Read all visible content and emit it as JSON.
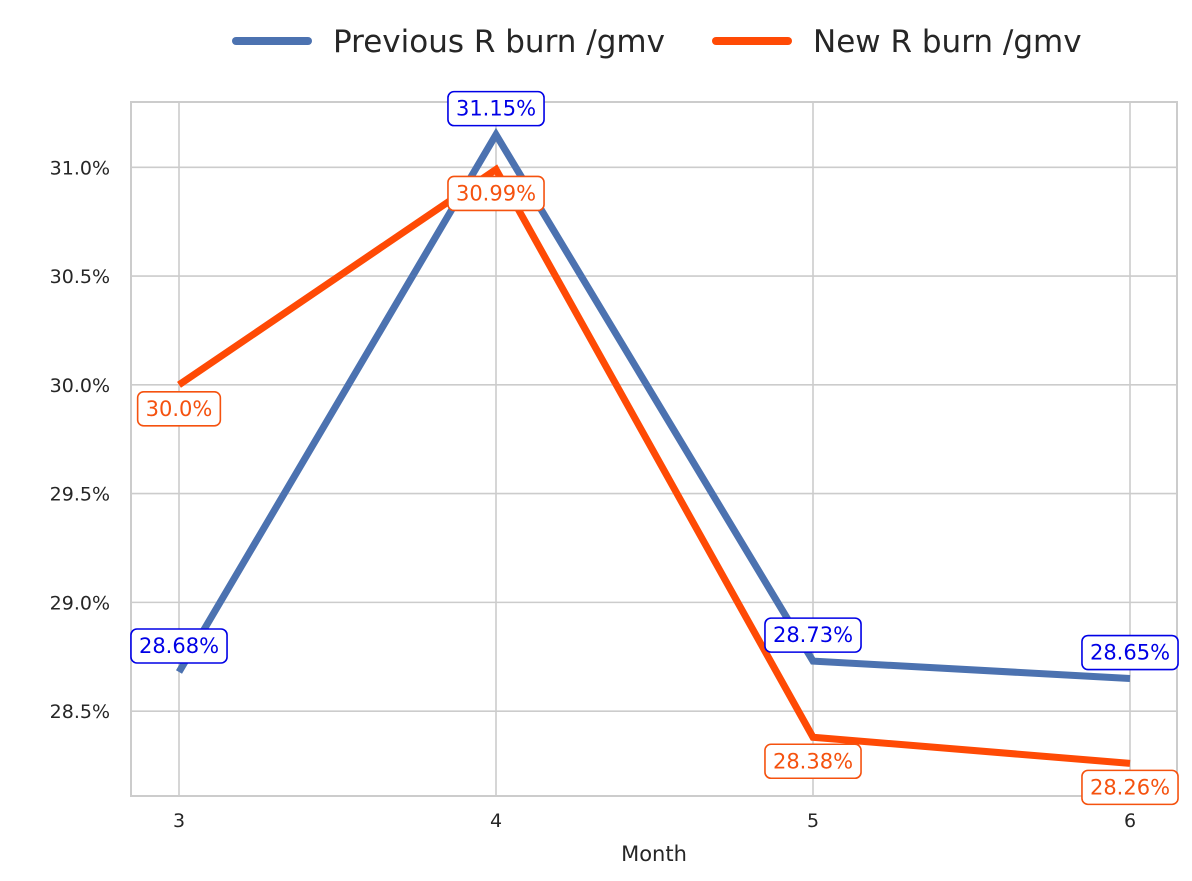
{
  "chart_data": {
    "type": "line",
    "title": "",
    "xlabel": "Month",
    "ylabel": "",
    "x": [
      3,
      4,
      5,
      6
    ],
    "x_tick_labels": [
      "3",
      "4",
      "5",
      "6"
    ],
    "y_ticks": [
      28.5,
      29.0,
      29.5,
      30.0,
      30.5,
      31.0
    ],
    "y_tick_labels": [
      "28.5%",
      "29.0%",
      "29.5%",
      "30.0%",
      "30.5%",
      "31.0%"
    ],
    "ylim": [
      28.11,
      31.3
    ],
    "grid": true,
    "legend_position": "top-center",
    "series": [
      {
        "name": "Previous R burn /gmv",
        "values": [
          28.68,
          31.15,
          28.73,
          28.65
        ],
        "labels": [
          "28.68%",
          "31.15%",
          "28.73%",
          "28.65%"
        ],
        "color": "#4c72b0",
        "label_color": "#0000e6"
      },
      {
        "name": "New R burn /gmv",
        "values": [
          30.0,
          30.99,
          28.38,
          28.26
        ],
        "labels": [
          "30.0%",
          "30.99%",
          "28.38%",
          "28.26%"
        ],
        "color": "#ff4a05",
        "label_color": "#f5520f"
      }
    ]
  }
}
